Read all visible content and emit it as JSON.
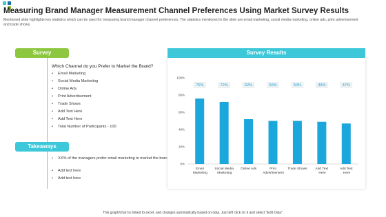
{
  "header": {
    "title": "Measuring Brand Manager Measurement Channel Preferences Using Market Survey Results",
    "subtitle": "Mentioned slide highlights key statistics which can be used for measuring brand manager channel preferences. The statistics mentioned in the slide are email marketing, social media marketing, online ads, print advertisement and trade shows."
  },
  "survey": {
    "label": "Survey",
    "question": "Which Channel do you Prefer to Market the Brand?",
    "items": [
      "Email Marketing",
      "Social Media Marketing",
      "Online Ads",
      "Print Advertisement",
      "Trade Shows",
      "Add Text Here",
      "Add Text Here",
      "Total Number of Participants - 100"
    ]
  },
  "takeaways": {
    "label": "Takeaways",
    "items": [
      "XX% of the managers prefer email marketing to market the brand",
      "Add text here",
      "Add text here"
    ]
  },
  "chart_data": {
    "type": "bar",
    "title": "Survey Results",
    "categories": [
      "Email Marketing",
      "Social Media Marketing",
      "Online Ads",
      "Print Advertisement",
      "Trade Shows",
      "Add Text Here",
      "Add Text Here"
    ],
    "values": [
      76,
      72,
      52,
      50,
      50,
      49,
      47
    ],
    "value_labels": [
      "76%",
      "72%",
      "52%",
      "50%",
      "50%",
      "49%",
      "47%"
    ],
    "color": "#1ba6dc",
    "ylim": [
      0,
      100
    ],
    "yticks": [
      {
        "value": 0,
        "label": "0%"
      },
      {
        "value": 20,
        "label": "20%"
      },
      {
        "value": 40,
        "label": "40%"
      },
      {
        "value": 60,
        "label": "60%"
      },
      {
        "value": 80,
        "label": "80%"
      },
      {
        "value": 100,
        "label": "100%"
      }
    ],
    "grid": false
  },
  "footer": "This graph/chart is linked to excel, and changes automatically based on data. Just left click on it and select \"Edit Data\"."
}
